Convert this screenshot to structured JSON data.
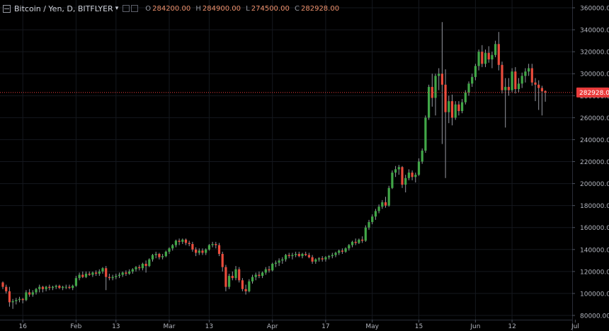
{
  "header": {
    "symbol_title": "Bitcoin / Yen, D, BITFLYER",
    "ohlc": [
      {
        "label": "O",
        "value": "284200.00"
      },
      {
        "label": "H",
        "value": "284900.00"
      },
      {
        "label": "L",
        "value": "274500.00"
      },
      {
        "label": "C",
        "value": "282928.00"
      }
    ]
  },
  "colors": {
    "up": "#41a748",
    "down": "#ea4c3c",
    "wick": "#9598a1",
    "price_line": "#ea3b3b",
    "background": "#000000",
    "grid": "#15181e"
  },
  "chart_data": {
    "type": "candlestick",
    "title": "Bitcoin / Yen, D, BITFLYER",
    "ylim": [
      75000,
      360000
    ],
    "y_ticks": [
      "80000.00",
      "100000.00",
      "120000.00",
      "140000.00",
      "160000.00",
      "180000.00",
      "200000.00",
      "220000.00",
      "240000.00",
      "260000.00",
      "280000.00",
      "300000.00",
      "320000.00",
      "340000.00",
      "360000.00"
    ],
    "x_ticks": [
      {
        "label": "16",
        "index": 6
      },
      {
        "label": "Feb",
        "index": 22
      },
      {
        "label": "13",
        "index": 34
      },
      {
        "label": "Mar",
        "index": 50
      },
      {
        "label": "13",
        "index": 62
      },
      {
        "label": "Apr",
        "index": 81
      },
      {
        "label": "17",
        "index": 97
      },
      {
        "label": "May",
        "index": 111
      },
      {
        "label": "15",
        "index": 125
      },
      {
        "label": "Jun",
        "index": 142
      },
      {
        "label": "12",
        "index": 153
      },
      {
        "label": "Jul",
        "index": 172
      }
    ],
    "last_price": "282928.00",
    "last_price_value": 282928,
    "candles": [
      [
        110000,
        111000,
        104000,
        106000
      ],
      [
        106000,
        108000,
        100000,
        102000
      ],
      [
        102000,
        106000,
        88000,
        92000
      ],
      [
        92000,
        95000,
        86000,
        93000
      ],
      [
        93000,
        96000,
        90000,
        94000
      ],
      [
        94000,
        97000,
        92000,
        95000
      ],
      [
        95000,
        96000,
        91000,
        94000
      ],
      [
        94000,
        103000,
        93000,
        101000
      ],
      [
        101000,
        104000,
        97000,
        99000
      ],
      [
        99000,
        103000,
        97000,
        101000
      ],
      [
        101000,
        105000,
        99000,
        104000
      ],
      [
        104000,
        108000,
        101000,
        106000
      ],
      [
        106000,
        107000,
        101000,
        104000
      ],
      [
        104000,
        107000,
        102000,
        106000
      ],
      [
        106000,
        108000,
        103000,
        105000
      ],
      [
        105000,
        107000,
        103000,
        106000
      ],
      [
        106000,
        108000,
        104000,
        107000
      ],
      [
        107000,
        108000,
        104000,
        105000
      ],
      [
        105000,
        107000,
        103000,
        106000
      ],
      [
        106000,
        108000,
        104000,
        106000
      ],
      [
        106000,
        108000,
        104000,
        105000
      ],
      [
        105000,
        108000,
        103000,
        107000
      ],
      [
        107000,
        116000,
        106000,
        114000
      ],
      [
        114000,
        119000,
        112000,
        117000
      ],
      [
        117000,
        120000,
        114000,
        115000
      ],
      [
        115000,
        120000,
        114000,
        118000
      ],
      [
        118000,
        120000,
        116000,
        117000
      ],
      [
        117000,
        120000,
        115000,
        119000
      ],
      [
        119000,
        121000,
        116000,
        118000
      ],
      [
        118000,
        122000,
        116000,
        120000
      ],
      [
        120000,
        124000,
        118000,
        123000
      ],
      [
        123000,
        125000,
        103000,
        115000
      ],
      [
        115000,
        118000,
        112000,
        114000
      ],
      [
        114000,
        117000,
        112000,
        115000
      ],
      [
        115000,
        118000,
        113000,
        116000
      ],
      [
        116000,
        119000,
        114000,
        117000
      ],
      [
        117000,
        120000,
        115000,
        119000
      ],
      [
        119000,
        121000,
        116000,
        118000
      ],
      [
        118000,
        122000,
        117000,
        120000
      ],
      [
        120000,
        123000,
        118000,
        122000
      ],
      [
        122000,
        125000,
        120000,
        124000
      ],
      [
        124000,
        126000,
        121000,
        123000
      ],
      [
        123000,
        128000,
        121000,
        127000
      ],
      [
        127000,
        130000,
        119000,
        125000
      ],
      [
        125000,
        132000,
        124000,
        131000
      ],
      [
        131000,
        136000,
        129000,
        135000
      ],
      [
        135000,
        138000,
        132000,
        136000
      ],
      [
        136000,
        137000,
        131000,
        133000
      ],
      [
        133000,
        136000,
        131000,
        134000
      ],
      [
        134000,
        139000,
        133000,
        138000
      ],
      [
        138000,
        142000,
        136000,
        141000
      ],
      [
        141000,
        145000,
        139000,
        144000
      ],
      [
        144000,
        149000,
        142000,
        148000
      ],
      [
        148000,
        150000,
        144000,
        147000
      ],
      [
        147000,
        150000,
        145000,
        149000
      ],
      [
        149000,
        150000,
        144000,
        146000
      ],
      [
        146000,
        148000,
        143000,
        145000
      ],
      [
        145000,
        147000,
        138000,
        140000
      ],
      [
        140000,
        142000,
        134000,
        137000
      ],
      [
        137000,
        141000,
        135000,
        139000
      ],
      [
        139000,
        141000,
        135000,
        137000
      ],
      [
        137000,
        141000,
        135000,
        140000
      ],
      [
        140000,
        145000,
        139000,
        144000
      ],
      [
        144000,
        147000,
        142000,
        145000
      ],
      [
        145000,
        147000,
        141000,
        144000
      ],
      [
        144000,
        146000,
        134000,
        136000
      ],
      [
        136000,
        138000,
        120000,
        124000
      ],
      [
        124000,
        126000,
        102000,
        106000
      ],
      [
        106000,
        118000,
        104000,
        116000
      ],
      [
        116000,
        120000,
        112000,
        114000
      ],
      [
        114000,
        125000,
        112000,
        122000
      ],
      [
        122000,
        124000,
        110000,
        112000
      ],
      [
        112000,
        114000,
        102000,
        104000
      ],
      [
        104000,
        108000,
        99000,
        102000
      ],
      [
        102000,
        113000,
        101000,
        111000
      ],
      [
        111000,
        117000,
        109000,
        115000
      ],
      [
        115000,
        119000,
        112000,
        117000
      ],
      [
        117000,
        120000,
        114000,
        116000
      ],
      [
        116000,
        120000,
        114000,
        119000
      ],
      [
        119000,
        124000,
        117000,
        122000
      ],
      [
        122000,
        125000,
        119000,
        121000
      ],
      [
        121000,
        128000,
        120000,
        127000
      ],
      [
        127000,
        130000,
        124000,
        128000
      ],
      [
        128000,
        132000,
        125000,
        130000
      ],
      [
        130000,
        133000,
        127000,
        131000
      ],
      [
        131000,
        136000,
        129000,
        135000
      ],
      [
        135000,
        137000,
        132000,
        134000
      ],
      [
        134000,
        137000,
        131000,
        135000
      ],
      [
        135000,
        138000,
        133000,
        136000
      ],
      [
        136000,
        138000,
        133000,
        134000
      ],
      [
        134000,
        137000,
        132000,
        136000
      ],
      [
        136000,
        138000,
        134000,
        135000
      ],
      [
        135000,
        137000,
        132000,
        133000
      ],
      [
        133000,
        135000,
        127000,
        129000
      ],
      [
        129000,
        132000,
        127000,
        131000
      ],
      [
        131000,
        133000,
        129000,
        132000
      ],
      [
        132000,
        134000,
        129000,
        131000
      ],
      [
        131000,
        134000,
        129000,
        133000
      ],
      [
        133000,
        135000,
        131000,
        134000
      ],
      [
        134000,
        137000,
        132000,
        135000
      ],
      [
        135000,
        138000,
        133000,
        137000
      ],
      [
        137000,
        140000,
        135000,
        139000
      ],
      [
        139000,
        141000,
        136000,
        138000
      ],
      [
        138000,
        142000,
        137000,
        141000
      ],
      [
        141000,
        145000,
        139000,
        144000
      ],
      [
        144000,
        148000,
        142000,
        147000
      ],
      [
        147000,
        150000,
        144000,
        146000
      ],
      [
        146000,
        150000,
        145000,
        149000
      ],
      [
        149000,
        152000,
        146000,
        148000
      ],
      [
        148000,
        162000,
        147000,
        160000
      ],
      [
        160000,
        167000,
        158000,
        165000
      ],
      [
        165000,
        172000,
        163000,
        170000
      ],
      [
        170000,
        177000,
        167000,
        175000
      ],
      [
        175000,
        181000,
        173000,
        179000
      ],
      [
        179000,
        185000,
        177000,
        183000
      ],
      [
        183000,
        188000,
        178000,
        180000
      ],
      [
        180000,
        198000,
        179000,
        196000
      ],
      [
        196000,
        212000,
        195000,
        210000
      ],
      [
        210000,
        216000,
        206000,
        213000
      ],
      [
        213000,
        217000,
        208000,
        215000
      ],
      [
        215000,
        216000,
        196000,
        199000
      ],
      [
        199000,
        208000,
        192000,
        205000
      ],
      [
        205000,
        213000,
        203000,
        210000
      ],
      [
        210000,
        212000,
        203000,
        206000
      ],
      [
        206000,
        210000,
        201000,
        208000
      ],
      [
        208000,
        223000,
        207000,
        220000
      ],
      [
        220000,
        232000,
        218000,
        230000
      ],
      [
        230000,
        262000,
        228000,
        260000
      ],
      [
        260000,
        290000,
        258000,
        288000
      ],
      [
        288000,
        300000,
        270000,
        278000
      ],
      [
        278000,
        300000,
        262000,
        298000
      ],
      [
        298000,
        305000,
        285000,
        300000
      ],
      [
        300000,
        347000,
        236000,
        290000
      ],
      [
        290000,
        304000,
        205000,
        265000
      ],
      [
        265000,
        280000,
        255000,
        275000
      ],
      [
        275000,
        281000,
        253000,
        260000
      ],
      [
        260000,
        275000,
        258000,
        272000
      ],
      [
        272000,
        275000,
        262000,
        266000
      ],
      [
        266000,
        277000,
        264000,
        274000
      ],
      [
        274000,
        285000,
        272000,
        283000
      ],
      [
        283000,
        293000,
        280000,
        291000
      ],
      [
        291000,
        300000,
        288000,
        297000
      ],
      [
        297000,
        309000,
        294000,
        307000
      ],
      [
        307000,
        322000,
        303000,
        320000
      ],
      [
        320000,
        326000,
        306000,
        309000
      ],
      [
        309000,
        322000,
        306000,
        319000
      ],
      [
        319000,
        325000,
        310000,
        313000
      ],
      [
        313000,
        320000,
        305000,
        317000
      ],
      [
        317000,
        330000,
        315000,
        327000
      ],
      [
        327000,
        338000,
        303000,
        308000
      ],
      [
        308000,
        311000,
        282000,
        285000
      ],
      [
        285000,
        296000,
        251000,
        288000
      ],
      [
        288000,
        296000,
        280000,
        285000
      ],
      [
        285000,
        305000,
        283000,
        302000
      ],
      [
        302000,
        306000,
        282000,
        286000
      ],
      [
        286000,
        296000,
        283000,
        291000
      ],
      [
        291000,
        301000,
        287000,
        298000
      ],
      [
        298000,
        305000,
        292000,
        302000
      ],
      [
        302000,
        309000,
        298000,
        305000
      ],
      [
        305000,
        309000,
        289000,
        292000
      ],
      [
        292000,
        296000,
        275000,
        290000
      ],
      [
        290000,
        294000,
        267000,
        287000
      ],
      [
        287000,
        289000,
        262000,
        284000
      ],
      [
        284200,
        284900,
        274500,
        282928
      ]
    ]
  }
}
